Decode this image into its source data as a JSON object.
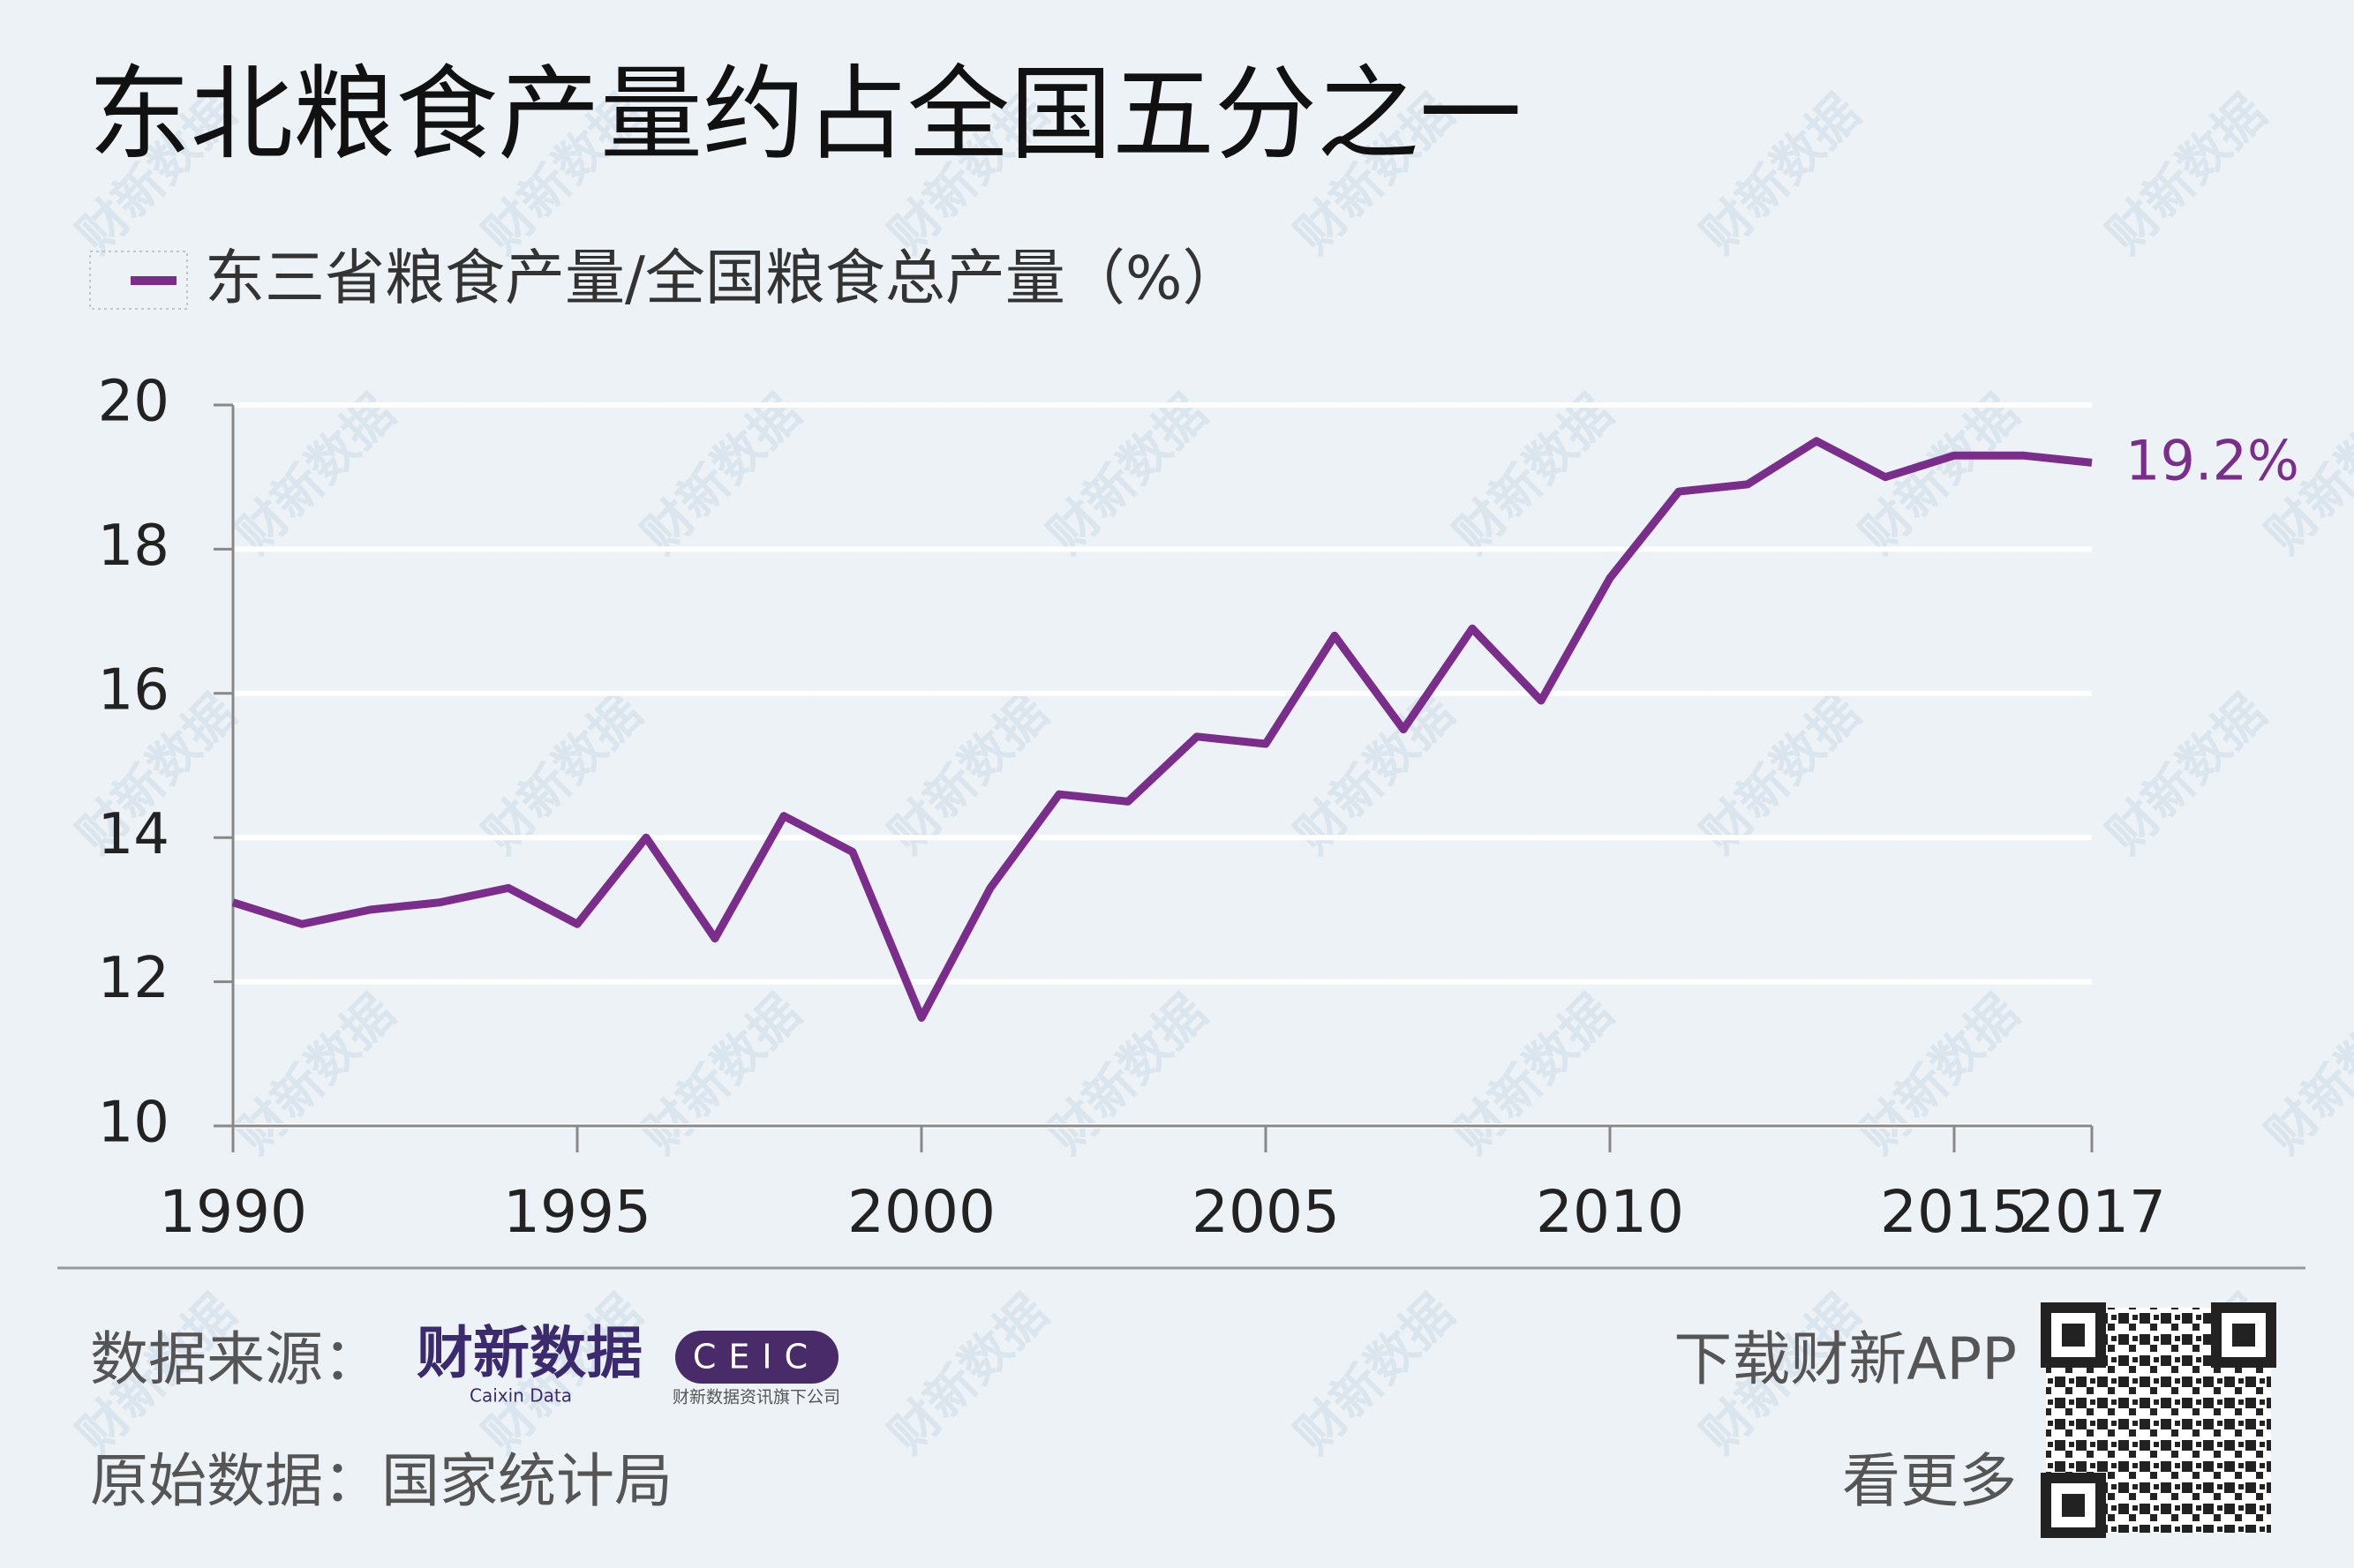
{
  "chart_data": {
    "type": "line",
    "title": "东北粮食产量约占全国五分之一",
    "x": [
      1990,
      1991,
      1992,
      1993,
      1994,
      1995,
      1996,
      1997,
      1998,
      1999,
      2000,
      2001,
      2002,
      2003,
      2004,
      2005,
      2006,
      2007,
      2008,
      2009,
      2010,
      2011,
      2012,
      2013,
      2014,
      2015,
      2016,
      2017
    ],
    "series": [
      {
        "name": "东三省粮食产量/全国粮食总产量（%）",
        "color": "#7b2d8b",
        "values": [
          13.1,
          12.8,
          13.0,
          13.1,
          13.3,
          12.8,
          14.0,
          12.6,
          14.3,
          13.8,
          11.5,
          13.3,
          14.6,
          14.5,
          15.4,
          15.3,
          16.8,
          15.5,
          16.9,
          15.9,
          17.6,
          18.8,
          18.9,
          19.5,
          19.0,
          19.3,
          19.3,
          19.2
        ],
        "value_labels": [
          null,
          null,
          null,
          null,
          null,
          null,
          null,
          null,
          null,
          null,
          null,
          null,
          null,
          null,
          null,
          null,
          null,
          null,
          null,
          null,
          null,
          null,
          null,
          null,
          null,
          null,
          null,
          "19.2%"
        ]
      }
    ],
    "xlim": [
      1990,
      2017
    ],
    "xticks": [
      1990,
      1995,
      2000,
      2005,
      2010,
      2015,
      2017
    ],
    "ylim": [
      10,
      20
    ],
    "yticks": [
      10,
      12,
      14,
      16,
      18,
      20
    ],
    "grid": true
  },
  "footer": {
    "source_label": "数据来源：",
    "source_logo": "财新数据",
    "source_logo_en": "Caixin Data",
    "ceic": "CEIC",
    "ceic_note": "财新数据资讯旗下公司",
    "origin": "原始数据：国家统计局",
    "app": "下载财新APP",
    "app_more": "看更多"
  },
  "watermark": "财新数据"
}
